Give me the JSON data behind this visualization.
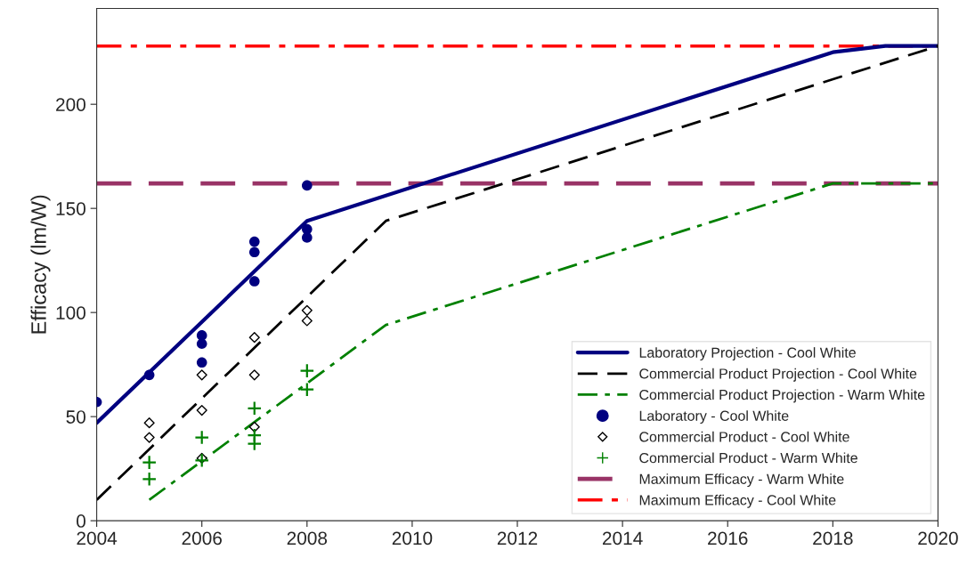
{
  "chart_data": {
    "type": "line",
    "ylabel": "Efficacy (lm/W)",
    "xlim": [
      2004,
      2020
    ],
    "xticks": [
      2004,
      2006,
      2008,
      2010,
      2012,
      2014,
      2016,
      2018,
      2020
    ],
    "ylim": [
      0,
      246
    ],
    "yticks": [
      0,
      50,
      100,
      150,
      200
    ],
    "grid": false,
    "legend": "bottom right",
    "series": [
      {
        "name": "Laboratory Projection - Cool White",
        "color": "#000080",
        "line_style": "solid",
        "marker": "none",
        "x": [
          2004,
          2008,
          2018,
          2019,
          2020
        ],
        "values": [
          47,
          144,
          225,
          228,
          228
        ]
      },
      {
        "name": "Commercial Product Projection - Cool White",
        "color": "#000000",
        "line_style": "dashed",
        "marker": "none",
        "x": [
          2004,
          2009.5,
          2020
        ],
        "values": [
          10,
          144,
          228
        ]
      },
      {
        "name": "Commercial Product Projection - Warm White",
        "color": "#008000",
        "line_style": "dashdot",
        "marker": "none",
        "x": [
          2005,
          2009.5,
          2018,
          2020
        ],
        "values": [
          10,
          94,
          162,
          162
        ]
      },
      {
        "name": "Laboratory - Cool White",
        "type": "scatter",
        "color": "#000080",
        "marker": "circle",
        "x": [
          2004,
          2005,
          2006,
          2006,
          2006,
          2007,
          2007,
          2007,
          2008,
          2008,
          2008
        ],
        "values": [
          57,
          70,
          89,
          85,
          76,
          134,
          129,
          115,
          161,
          140,
          136
        ]
      },
      {
        "name": "Commercial Product - Cool White",
        "type": "scatter",
        "color": "#000000",
        "marker": "diamond",
        "x": [
          2005,
          2005,
          2006,
          2006,
          2006,
          2007,
          2007,
          2007,
          2008,
          2008
        ],
        "values": [
          47,
          40,
          70,
          53,
          30,
          88,
          70,
          45,
          101,
          96
        ]
      },
      {
        "name": "Commercial Product - Warm White",
        "type": "scatter",
        "color": "#008000",
        "marker": "cross",
        "x": [
          2005,
          2005,
          2006,
          2006,
          2007,
          2007,
          2007,
          2008,
          2008
        ],
        "values": [
          28,
          20,
          40,
          29,
          54,
          41,
          37,
          72,
          63
        ]
      }
    ],
    "ref_lines": [
      {
        "axis": "y",
        "value": 162,
        "label": "Maximum Efficacy - Warm White",
        "color": "#993366",
        "line_style": "dashed"
      },
      {
        "axis": "y",
        "value": 228,
        "label": "Maximum Efficacy - Cool White",
        "color": "#ff0000",
        "line_style": "dashdot"
      }
    ]
  }
}
